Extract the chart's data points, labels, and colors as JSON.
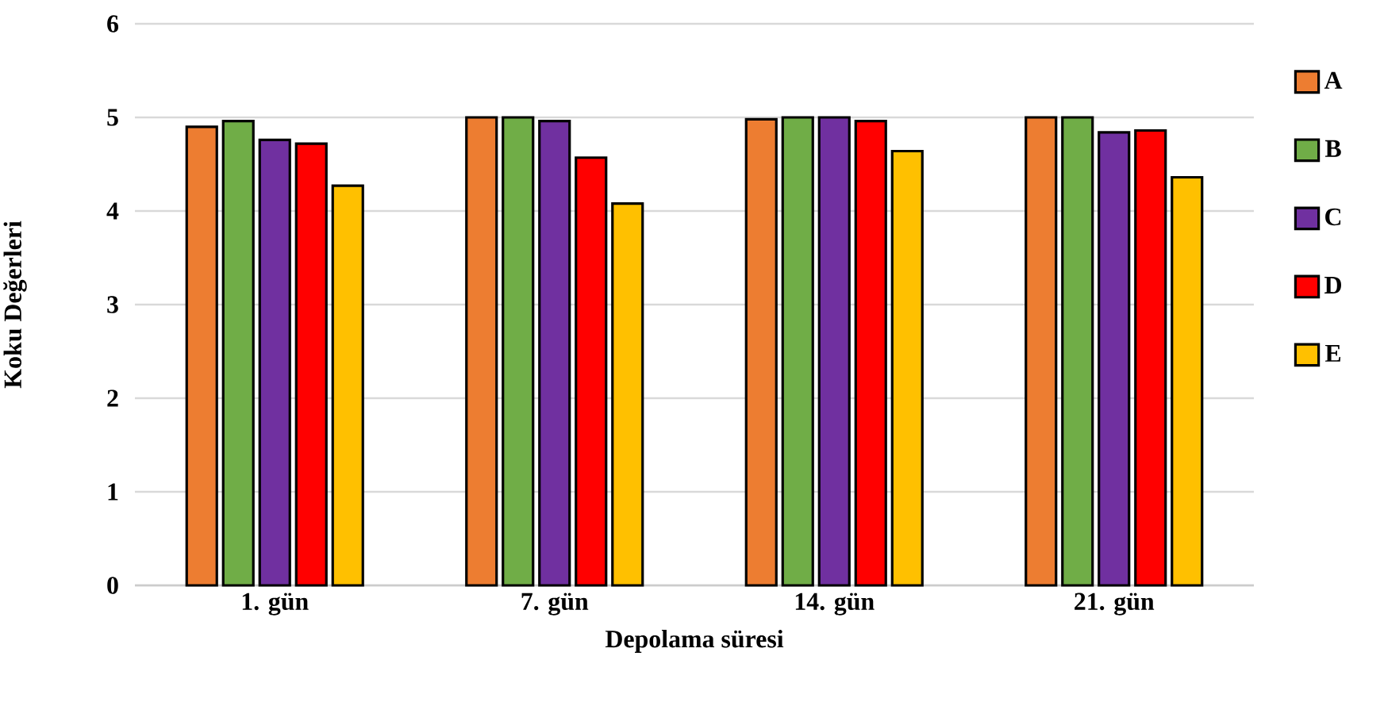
{
  "chart_data": {
    "type": "bar",
    "xlabel": "Depolama süresi",
    "ylabel": "Koku Değerleri",
    "categories": [
      "1. gün",
      "7. gün",
      "14. gün",
      "21. gün"
    ],
    "series": [
      {
        "name": "A",
        "color": "#ed7d31",
        "values": [
          4.9,
          5.0,
          4.98,
          5.0
        ]
      },
      {
        "name": "B",
        "color": "#70ad47",
        "values": [
          4.96,
          5.0,
          5.0,
          5.0
        ]
      },
      {
        "name": "C",
        "color": "#7030a0",
        "values": [
          4.76,
          4.96,
          5.0,
          4.84
        ]
      },
      {
        "name": "D",
        "color": "#ff0000",
        "values": [
          4.72,
          4.57,
          4.96,
          4.86
        ]
      },
      {
        "name": "E",
        "color": "#ffc000",
        "values": [
          4.27,
          4.08,
          4.64,
          4.36
        ]
      }
    ],
    "ylim": [
      0,
      6
    ],
    "yticks": [
      0,
      1,
      2,
      3,
      4,
      5,
      6
    ],
    "grid": "y",
    "legend": "right"
  }
}
